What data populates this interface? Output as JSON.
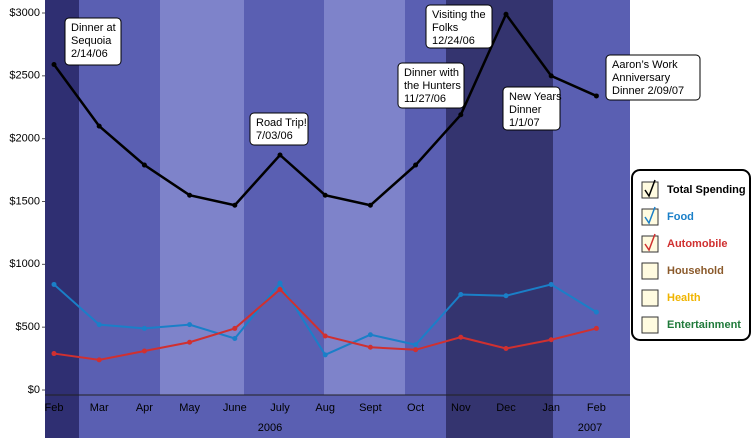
{
  "chart_data": {
    "type": "line",
    "categories": [
      "Feb",
      "Mar",
      "Apr",
      "May",
      "June",
      "July",
      "Aug",
      "Sept",
      "Oct",
      "Nov",
      "Dec",
      "Jan",
      "Feb"
    ],
    "years": [
      "2006",
      "2007"
    ],
    "ylim": [
      0,
      3000
    ],
    "yticks": [
      {
        "value": 0,
        "label": "$0"
      },
      {
        "value": 500,
        "label": "$500"
      },
      {
        "value": 1000,
        "label": "$1000"
      },
      {
        "value": 1500,
        "label": "$1500"
      },
      {
        "value": 2000,
        "label": "$2000"
      },
      {
        "value": 2500,
        "label": "$2500"
      },
      {
        "value": 3000,
        "label": "$3000"
      }
    ],
    "series": [
      {
        "name": "Total Spending",
        "color": "#000000",
        "checked": true,
        "values": [
          2590,
          2100,
          1790,
          1550,
          1470,
          1870,
          1550,
          1470,
          1790,
          2190,
          2990,
          2500,
          2340
        ]
      },
      {
        "name": "Food",
        "color": "#1a7fc8",
        "checked": true,
        "values": [
          840,
          520,
          490,
          520,
          410,
          850,
          280,
          440,
          360,
          760,
          750,
          840,
          620
        ]
      },
      {
        "name": "Automobile",
        "color": "#d03030",
        "checked": true,
        "values": [
          290,
          240,
          310,
          380,
          490,
          800,
          430,
          340,
          320,
          420,
          330,
          400,
          490
        ]
      },
      {
        "name": "Household",
        "color": "#8b5a2b",
        "checked": false
      },
      {
        "name": "Health",
        "color": "#f0b400",
        "checked": false
      },
      {
        "name": "Entertainment",
        "color": "#1f7a3a",
        "checked": false
      }
    ],
    "annotations": [
      {
        "lines": [
          "Dinner at",
          "Sequoia",
          "2/14/06"
        ]
      },
      {
        "lines": [
          "Road Trip!",
          "7/03/06"
        ]
      },
      {
        "lines": [
          "Dinner with",
          "the Hunters",
          "11/27/06"
        ]
      },
      {
        "lines": [
          "Visiting the",
          "Folks",
          "12/24/06"
        ]
      },
      {
        "lines": [
          "New Years",
          "Dinner",
          "1/1/07"
        ]
      },
      {
        "lines": [
          "Aaron’s Work",
          "Anniversary",
          "Dinner 2/09/07"
        ]
      }
    ]
  }
}
